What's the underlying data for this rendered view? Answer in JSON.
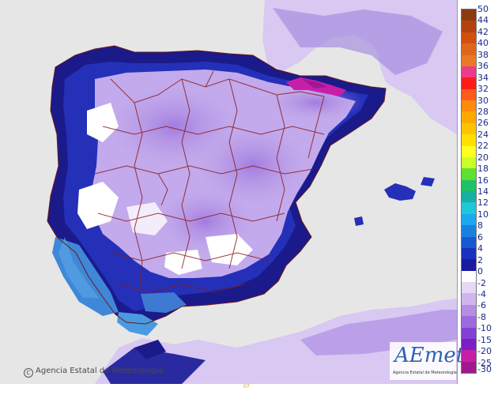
{
  "map": {
    "copyright_text": "Agencia Estatal de Meteorología",
    "logo_text": "AEmet",
    "logo_subtext": "Agencia Estatal de Meteorología",
    "bottom_mark": "07"
  },
  "legend": {
    "labels": [
      "50",
      "44",
      "42",
      "40",
      "38",
      "36",
      "34",
      "32",
      "30",
      "28",
      "26",
      "24",
      "22",
      "20",
      "18",
      "16",
      "14",
      "12",
      "10",
      "8",
      "6",
      "4",
      "2",
      "0",
      "-2",
      "-4",
      "-6",
      "-8",
      "-10",
      "-15",
      "-20",
      "-25",
      "-30"
    ],
    "colors": [
      "#8b3a12",
      "#b5420e",
      "#d2500e",
      "#e0661c",
      "#e87a26",
      "#ee3a8a",
      "#ff1a1a",
      "#ff5a1e",
      "#ff8a10",
      "#ffa800",
      "#ffc400",
      "#ffe000",
      "#ffff20",
      "#c8ff28",
      "#60e030",
      "#20c068",
      "#18b0a0",
      "#1ec8d8",
      "#1aa8ee",
      "#1a80e0",
      "#1a58d0",
      "#1a30c0",
      "#1a1aa0",
      "#ffffff",
      "#e6d8f6",
      "#cfb6ee",
      "#b48ee4",
      "#9a6ade",
      "#8240d6",
      "#7c1ec8",
      "#c81ea8",
      "#a01890"
    ]
  }
}
